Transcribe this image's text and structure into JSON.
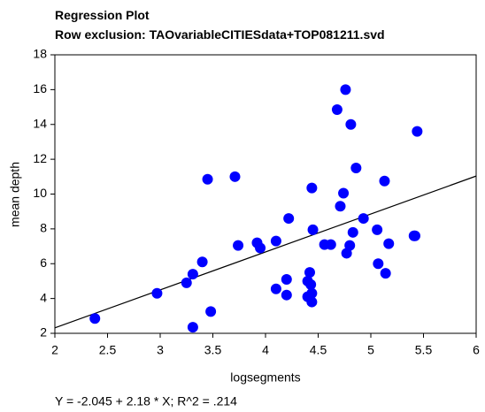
{
  "chart_data": {
    "type": "scatter",
    "title": "Regression Plot",
    "subtitle": "Row exclusion: TAOvariableCITIESdata+TOP081211.svd",
    "x_label": "logsegments",
    "y_label": "mean depth",
    "annotation": "Y = -2.045 + 2.18 * X; R^2 = .214",
    "regression": {
      "intercept": -2.045,
      "slope": 2.18
    },
    "color": "#0000ff",
    "xlim": [
      2,
      6
    ],
    "ylim": [
      2,
      18
    ],
    "xticks": [
      2,
      2.5,
      3,
      3.5,
      4,
      4.5,
      5,
      5.5,
      6
    ],
    "yticks": [
      2,
      4,
      6,
      8,
      10,
      12,
      14,
      16,
      18
    ],
    "x": [
      2.38,
      2.97,
      3.25,
      3.31,
      3.31,
      3.4,
      3.45,
      3.48,
      3.71,
      3.74,
      3.92,
      3.95,
      4.1,
      4.1,
      4.2,
      4.2,
      4.22,
      4.4,
      4.4,
      4.42,
      4.43,
      4.44,
      4.44,
      4.44,
      4.45,
      4.56,
      4.62,
      4.68,
      4.71,
      4.74,
      4.76,
      4.77,
      4.8,
      4.81,
      4.83,
      4.86,
      4.93,
      5.06,
      5.07,
      5.13,
      5.14,
      5.17,
      5.41,
      5.42,
      5.44
    ],
    "y": [
      2.85,
      4.3,
      4.9,
      5.4,
      2.35,
      6.1,
      10.85,
      3.25,
      11.0,
      7.05,
      7.2,
      6.9,
      7.3,
      4.55,
      5.1,
      4.2,
      8.6,
      5.0,
      4.1,
      5.5,
      4.8,
      4.3,
      3.8,
      10.35,
      7.95,
      7.1,
      7.1,
      14.85,
      9.3,
      10.05,
      16.0,
      6.6,
      7.05,
      14.0,
      7.8,
      11.5,
      8.6,
      7.95,
      6.0,
      10.75,
      5.45,
      7.15,
      7.6,
      7.6,
      13.6
    ]
  }
}
